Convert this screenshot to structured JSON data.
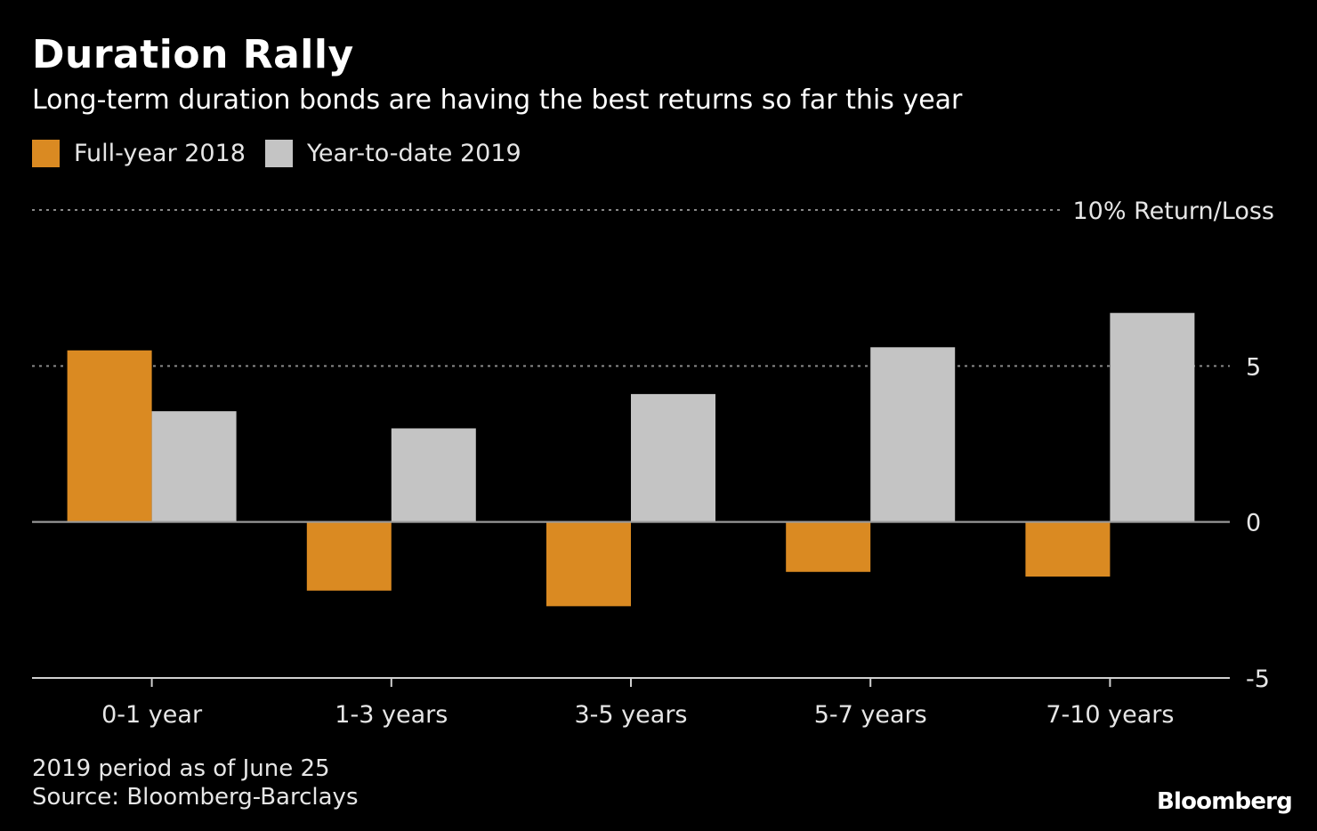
{
  "title": "Duration Rally",
  "subtitle": "Long-term duration bonds are having the best returns so far this year",
  "colors": {
    "background": "#000000",
    "series_2018": "#DA8A22",
    "series_2019": "#C4C4C4",
    "axis": "#bfbfbf",
    "text": "#e6e6e6"
  },
  "chart_data": {
    "type": "bar",
    "title": "Duration Rally",
    "subtitle": "Long-term duration bonds are having the best returns so far this year",
    "categories": [
      "0-1 year",
      "1-3 years",
      "3-5 years",
      "5-7 years",
      "7-10 years"
    ],
    "series": [
      {
        "name": "Full-year 2018",
        "color": "#DA8A22",
        "values": [
          5.5,
          -2.2,
          -2.7,
          -1.6,
          -1.75
        ]
      },
      {
        "name": "Year-to-date 2019",
        "color": "#C4C4C4",
        "values": [
          3.55,
          3.0,
          4.1,
          5.6,
          6.7
        ]
      }
    ],
    "ylim": [
      -5,
      10
    ],
    "yticks": [
      {
        "value": 10,
        "label": "10% Return/Loss"
      },
      {
        "value": 5,
        "label": "5"
      },
      {
        "value": 0,
        "label": "0"
      },
      {
        "value": -5,
        "label": "-5"
      }
    ],
    "xlabel": "",
    "ylabel": "",
    "legend_position": "top-left"
  },
  "footnote": {
    "line1": "2019 period as of June 25",
    "line2": "Source: Bloomberg-Barclays"
  },
  "brand": "Bloomberg"
}
